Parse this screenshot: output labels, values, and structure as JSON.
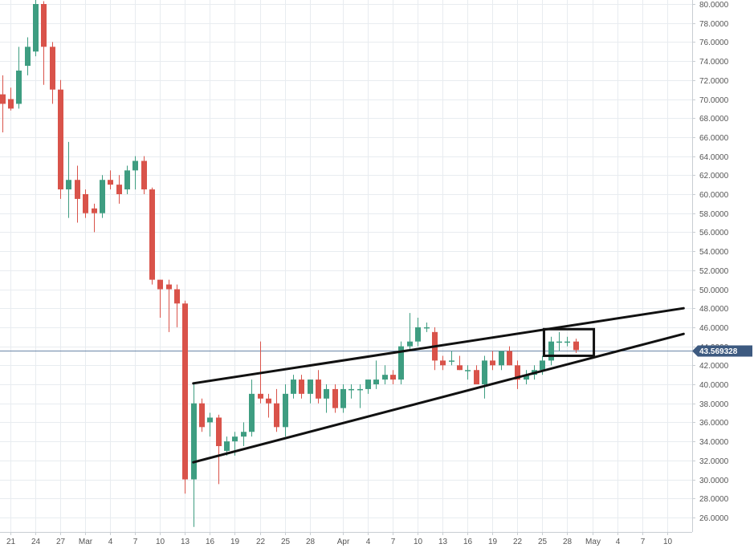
{
  "chart_data": {
    "type": "candlestick",
    "y_axis": {
      "position": "right",
      "ylim": [
        25,
        80.5
      ],
      "ticks": [
        "80.0000",
        "78.0000",
        "76.0000",
        "74.0000",
        "72.0000",
        "70.0000",
        "68.0000",
        "66.0000",
        "64.0000",
        "62.0000",
        "60.0000",
        "58.0000",
        "56.0000",
        "54.0000",
        "52.0000",
        "50.0000",
        "48.0000",
        "46.0000",
        "44.0000",
        "42.0000",
        "40.0000",
        "38.0000",
        "36.0000",
        "34.0000",
        "32.0000",
        "30.0000",
        "28.0000",
        "26.0000"
      ]
    },
    "x_axis": {
      "ticks": [
        {
          "label": "21",
          "day": 0
        },
        {
          "label": "24",
          "day": 3
        },
        {
          "label": "27",
          "day": 6
        },
        {
          "label": "Mar",
          "day": 9
        },
        {
          "label": "4",
          "day": 12
        },
        {
          "label": "7",
          "day": 15
        },
        {
          "label": "10",
          "day": 18
        },
        {
          "label": "13",
          "day": 21
        },
        {
          "label": "16",
          "day": 24
        },
        {
          "label": "19",
          "day": 27
        },
        {
          "label": "22",
          "day": 30
        },
        {
          "label": "25",
          "day": 33
        },
        {
          "label": "28",
          "day": 36
        },
        {
          "label": "Apr",
          "day": 40
        },
        {
          "label": "4",
          "day": 43
        },
        {
          "label": "7",
          "day": 46
        },
        {
          "label": "10",
          "day": 49
        },
        {
          "label": "13",
          "day": 52
        },
        {
          "label": "16",
          "day": 55
        },
        {
          "label": "19",
          "day": 58
        },
        {
          "label": "22",
          "day": 61
        },
        {
          "label": "25",
          "day": 64
        },
        {
          "label": "28",
          "day": 67
        },
        {
          "label": "May",
          "day": 70
        },
        {
          "label": "4",
          "day": 73
        },
        {
          "label": "7",
          "day": 76
        },
        {
          "label": "10",
          "day": 79
        }
      ]
    },
    "current_price": {
      "label": "43.569328",
      "value": 43.57,
      "color": "#3d5a80"
    },
    "colors": {
      "up": "#3e9d81",
      "down": "#d9534a",
      "grid": "#e8ecf0",
      "price_line": "#6b86a8"
    },
    "candles": [
      {
        "day": -1,
        "o": 70.5,
        "h": 72.5,
        "l": 66.5,
        "c": 69.5
      },
      {
        "day": 0,
        "o": 70.0,
        "h": 71.2,
        "l": 68.8,
        "c": 69.0
      },
      {
        "day": 1,
        "o": 69.5,
        "h": 75.5,
        "l": 69.0,
        "c": 73.0
      },
      {
        "day": 2,
        "o": 73.5,
        "h": 76.5,
        "l": 72.5,
        "c": 75.5
      },
      {
        "day": 3,
        "o": 75.0,
        "h": 80.5,
        "l": 74.5,
        "c": 80.0
      },
      {
        "day": 4,
        "o": 80.0,
        "h": 80.3,
        "l": 71.5,
        "c": 75.5
      },
      {
        "day": 5,
        "o": 75.5,
        "h": 76.0,
        "l": 69.5,
        "c": 71.0
      },
      {
        "day": 6,
        "o": 71.0,
        "h": 72.0,
        "l": 59.5,
        "c": 60.5
      },
      {
        "day": 7,
        "o": 60.5,
        "h": 65.5,
        "l": 57.5,
        "c": 61.5
      },
      {
        "day": 8,
        "o": 61.5,
        "h": 63.0,
        "l": 57.0,
        "c": 59.5
      },
      {
        "day": 9,
        "o": 60.0,
        "h": 60.5,
        "l": 57.5,
        "c": 58.0
      },
      {
        "day": 10,
        "o": 58.5,
        "h": 59.0,
        "l": 56.0,
        "c": 58.0
      },
      {
        "day": 11,
        "o": 58.0,
        "h": 62.0,
        "l": 57.5,
        "c": 61.5
      },
      {
        "day": 12,
        "o": 61.5,
        "h": 62.5,
        "l": 60.5,
        "c": 61.0
      },
      {
        "day": 13,
        "o": 61.0,
        "h": 62.0,
        "l": 59.0,
        "c": 60.0
      },
      {
        "day": 14,
        "o": 60.5,
        "h": 63.0,
        "l": 60.0,
        "c": 62.5
      },
      {
        "day": 15,
        "o": 62.5,
        "h": 64.0,
        "l": 60.5,
        "c": 63.5
      },
      {
        "day": 16,
        "o": 63.5,
        "h": 64.0,
        "l": 60.0,
        "c": 60.5
      },
      {
        "day": 17,
        "o": 60.5,
        "h": 60.7,
        "l": 50.5,
        "c": 51.0
      },
      {
        "day": 18,
        "o": 51.0,
        "h": 51.0,
        "l": 47.0,
        "c": 50.0
      },
      {
        "day": 19,
        "o": 50.5,
        "h": 51.0,
        "l": 45.5,
        "c": 50.0
      },
      {
        "day": 20,
        "o": 50.0,
        "h": 50.5,
        "l": 46.0,
        "c": 48.5
      },
      {
        "day": 21,
        "o": 48.5,
        "h": 48.8,
        "l": 28.5,
        "c": 30.0
      },
      {
        "day": 22,
        "o": 30.0,
        "h": 40.0,
        "l": 25.0,
        "c": 38.0
      },
      {
        "day": 23,
        "o": 38.0,
        "h": 38.5,
        "l": 35.0,
        "c": 35.5
      },
      {
        "day": 24,
        "o": 36.0,
        "h": 37.0,
        "l": 34.5,
        "c": 36.5
      },
      {
        "day": 25,
        "o": 36.5,
        "h": 36.8,
        "l": 29.5,
        "c": 33.5
      },
      {
        "day": 26,
        "o": 33.0,
        "h": 34.5,
        "l": 32.5,
        "c": 34.0
      },
      {
        "day": 27,
        "o": 34.0,
        "h": 35.0,
        "l": 32.5,
        "c": 34.5
      },
      {
        "day": 28,
        "o": 34.5,
        "h": 36.0,
        "l": 33.5,
        "c": 35.0
      },
      {
        "day": 29,
        "o": 35.0,
        "h": 40.5,
        "l": 34.5,
        "c": 39.0
      },
      {
        "day": 30,
        "o": 39.0,
        "h": 44.5,
        "l": 38.0,
        "c": 38.5
      },
      {
        "day": 31,
        "o": 38.5,
        "h": 39.0,
        "l": 36.5,
        "c": 38.0
      },
      {
        "day": 32,
        "o": 38.0,
        "h": 39.5,
        "l": 35.0,
        "c": 35.5
      },
      {
        "day": 33,
        "o": 35.5,
        "h": 40.0,
        "l": 34.5,
        "c": 39.0
      },
      {
        "day": 34,
        "o": 39.0,
        "h": 41.0,
        "l": 38.5,
        "c": 40.5
      },
      {
        "day": 35,
        "o": 40.5,
        "h": 41.0,
        "l": 38.5,
        "c": 39.0
      },
      {
        "day": 36,
        "o": 39.0,
        "h": 40.5,
        "l": 38.0,
        "c": 40.5
      },
      {
        "day": 37,
        "o": 40.5,
        "h": 41.5,
        "l": 38.0,
        "c": 38.5
      },
      {
        "day": 38,
        "o": 38.5,
        "h": 40.0,
        "l": 37.0,
        "c": 39.5
      },
      {
        "day": 39,
        "o": 39.5,
        "h": 40.0,
        "l": 37.0,
        "c": 37.5
      },
      {
        "day": 40,
        "o": 37.5,
        "h": 40.0,
        "l": 37.0,
        "c": 39.5
      },
      {
        "day": 41,
        "o": 39.5,
        "h": 40.0,
        "l": 38.5,
        "c": 39.5
      },
      {
        "day": 42,
        "o": 39.5,
        "h": 40.0,
        "l": 37.5,
        "c": 39.5
      },
      {
        "day": 43,
        "o": 39.5,
        "h": 40.5,
        "l": 39.0,
        "c": 40.5
      },
      {
        "day": 44,
        "o": 40.0,
        "h": 42.5,
        "l": 39.5,
        "c": 40.5
      },
      {
        "day": 45,
        "o": 40.5,
        "h": 42.0,
        "l": 40.0,
        "c": 41.0
      },
      {
        "day": 46,
        "o": 41.0,
        "h": 41.5,
        "l": 40.0,
        "c": 40.5
      },
      {
        "day": 47,
        "o": 40.5,
        "h": 44.5,
        "l": 40.0,
        "c": 44.0
      },
      {
        "day": 48,
        "o": 44.0,
        "h": 47.5,
        "l": 43.5,
        "c": 44.5
      },
      {
        "day": 49,
        "o": 44.5,
        "h": 47.0,
        "l": 44.0,
        "c": 46.0
      },
      {
        "day": 50,
        "o": 46.0,
        "h": 46.5,
        "l": 45.5,
        "c": 46.0
      },
      {
        "day": 51,
        "o": 45.5,
        "h": 46.0,
        "l": 41.5,
        "c": 42.5
      },
      {
        "day": 52,
        "o": 42.5,
        "h": 43.0,
        "l": 41.5,
        "c": 42.0
      },
      {
        "day": 53,
        "o": 42.5,
        "h": 43.5,
        "l": 42.0,
        "c": 42.5
      },
      {
        "day": 54,
        "o": 42.0,
        "h": 43.0,
        "l": 41.5,
        "c": 41.5
      },
      {
        "day": 55,
        "o": 41.5,
        "h": 42.0,
        "l": 40.5,
        "c": 41.5
      },
      {
        "day": 56,
        "o": 41.5,
        "h": 42.0,
        "l": 40.0,
        "c": 40.0
      },
      {
        "day": 57,
        "o": 40.0,
        "h": 43.0,
        "l": 38.5,
        "c": 42.5
      },
      {
        "day": 58,
        "o": 42.5,
        "h": 43.5,
        "l": 41.5,
        "c": 42.0
      },
      {
        "day": 59,
        "o": 42.0,
        "h": 43.5,
        "l": 41.5,
        "c": 43.5
      },
      {
        "day": 60,
        "o": 43.5,
        "h": 44.0,
        "l": 42.0,
        "c": 42.0
      },
      {
        "day": 61,
        "o": 42.0,
        "h": 42.5,
        "l": 39.5,
        "c": 40.5
      },
      {
        "day": 62,
        "o": 40.5,
        "h": 41.5,
        "l": 40.0,
        "c": 41.0
      },
      {
        "day": 63,
        "o": 41.0,
        "h": 42.0,
        "l": 40.5,
        "c": 41.5
      },
      {
        "day": 64,
        "o": 41.5,
        "h": 43.0,
        "l": 41.0,
        "c": 42.5
      },
      {
        "day": 65,
        "o": 42.5,
        "h": 45.0,
        "l": 42.0,
        "c": 44.5
      },
      {
        "day": 66,
        "o": 44.5,
        "h": 45.5,
        "l": 43.5,
        "c": 44.5
      },
      {
        "day": 67,
        "o": 44.5,
        "h": 45.0,
        "l": 44.0,
        "c": 44.5
      },
      {
        "day": 68,
        "o": 44.5,
        "h": 44.8,
        "l": 43.3,
        "c": 43.6
      }
    ],
    "trendlines": [
      {
        "name": "upper-trendline",
        "x1": 22,
        "y1": 40.1,
        "x2": 81,
        "y2": 48.0
      },
      {
        "name": "lower-trendline",
        "x1": 22,
        "y1": 31.8,
        "x2": 81,
        "y2": 45.3
      }
    ],
    "highlight_box": {
      "x1": 64.2,
      "x2": 70.2,
      "y1": 43.0,
      "y2": 45.8
    },
    "grid": true
  }
}
